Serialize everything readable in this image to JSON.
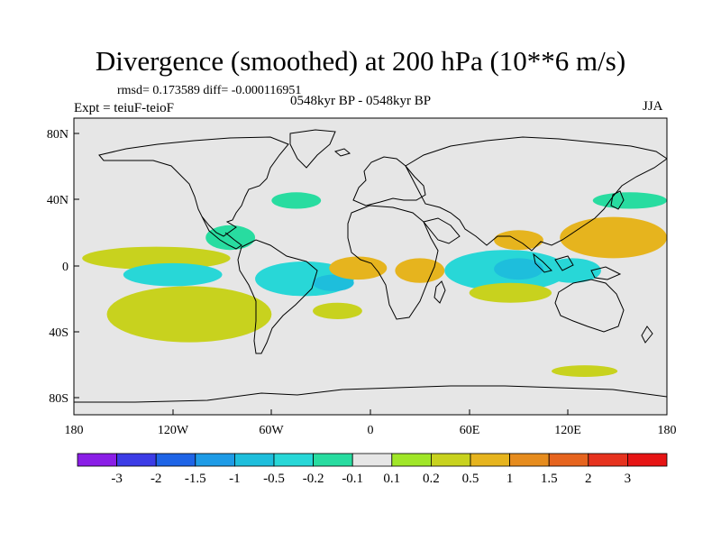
{
  "title": "Divergence (smoothed) at 200 hPa (10**6 m/s)",
  "stats": "rmsd= 0.173589 diff= -0.000116951",
  "experiment": "Expt = teiuF-teioF",
  "period": "0548kyr BP - 0548kyr BP",
  "season": "JJA",
  "chart_data": {
    "type": "heatmap",
    "map_type": "global contour map (equirectangular)",
    "x_axis": {
      "range": [
        -180,
        180
      ],
      "tick_labels": [
        "180",
        "120W",
        "60W",
        "0",
        "60E",
        "120E",
        "180"
      ]
    },
    "y_axis": {
      "range": [
        -90,
        90
      ],
      "tick_labels": [
        "80N",
        "40N",
        "0",
        "40S",
        "80S"
      ]
    },
    "colorbar": {
      "labels": [
        "-3",
        "-2",
        "-1.5",
        "-1",
        "-0.5",
        "-0.2",
        "-0.1",
        "0.1",
        "0.2",
        "0.5",
        "1",
        "1.5",
        "2",
        "3"
      ],
      "colors": [
        "#8a1ee6",
        "#3c3ce6",
        "#1e64e6",
        "#1e9be6",
        "#1ebedc",
        "#28d7d7",
        "#28dca0",
        "#e6e6e6",
        "#a0e628",
        "#c8d21e",
        "#e6b41e",
        "#e68c1e",
        "#e6641e",
        "#e6321e",
        "#e61414"
      ]
    },
    "regions": [
      {
        "name": "east-pacific-tropical-positive",
        "level": "0.2",
        "lon": [
          -175,
          -85
        ],
        "lat": [
          -2,
          12
        ]
      },
      {
        "name": "south-pacific-positive-core",
        "level": "0.5",
        "lon": [
          -130,
          -85
        ],
        "lat": [
          -38,
          -18
        ]
      },
      {
        "name": "south-pacific-positive-outer",
        "level": "0.2",
        "lon": [
          -160,
          -60
        ],
        "lat": [
          -46,
          -12
        ]
      },
      {
        "name": "tropical-pacific-negative",
        "level": "-0.5",
        "lon": [
          -150,
          -90
        ],
        "lat": [
          -12,
          2
        ]
      },
      {
        "name": "central-america-negative",
        "level": "-0.2",
        "lon": [
          -100,
          -70
        ],
        "lat": [
          10,
          25
        ]
      },
      {
        "name": "south-america-atlantic-negative",
        "level": "-0.5",
        "lon": [
          -70,
          -10
        ],
        "lat": [
          -18,
          3
        ]
      },
      {
        "name": "south-atlantic-negative-core",
        "level": "-1",
        "lon": [
          -35,
          -10
        ],
        "lat": [
          -15,
          -5
        ]
      },
      {
        "name": "tropical-atlantic-positive",
        "level": "0.5",
        "lon": [
          -25,
          10
        ],
        "lat": [
          -8,
          6
        ]
      },
      {
        "name": "south-atlantic-positive",
        "level": "0.2",
        "lon": [
          -35,
          -5
        ],
        "lat": [
          -32,
          -22
        ]
      },
      {
        "name": "africa-positive",
        "level": "0.5",
        "lon": [
          15,
          45
        ],
        "lat": [
          -10,
          5
        ]
      },
      {
        "name": "indian-ocean-negative",
        "level": "-0.5",
        "lon": [
          45,
          120
        ],
        "lat": [
          -15,
          10
        ]
      },
      {
        "name": "indian-ocean-negative-core",
        "level": "-1",
        "lon": [
          75,
          105
        ],
        "lat": [
          -8,
          5
        ]
      },
      {
        "name": "bay-of-bengal-positive",
        "level": "0.5",
        "lon": [
          75,
          105
        ],
        "lat": [
          10,
          22
        ]
      },
      {
        "name": "west-pacific-positive",
        "level": "0.5",
        "lon": [
          115,
          180
        ],
        "lat": [
          5,
          30
        ]
      },
      {
        "name": "maritime-continent-negative",
        "level": "-0.5",
        "lon": [
          105,
          140
        ],
        "lat": [
          -10,
          5
        ]
      },
      {
        "name": "south-indian-positive",
        "level": "0.2",
        "lon": [
          60,
          110
        ],
        "lat": [
          -22,
          -10
        ]
      },
      {
        "name": "north-pacific-negative",
        "level": "-0.2",
        "lon": [
          135,
          180
        ],
        "lat": [
          35,
          45
        ]
      },
      {
        "name": "north-atlantic-negative",
        "level": "-0.2",
        "lon": [
          -60,
          -30
        ],
        "lat": [
          35,
          45
        ]
      },
      {
        "name": "southern-ocean-positive",
        "level": "0.2",
        "lon": [
          110,
          150
        ],
        "lat": [
          -67,
          -60
        ]
      }
    ]
  }
}
